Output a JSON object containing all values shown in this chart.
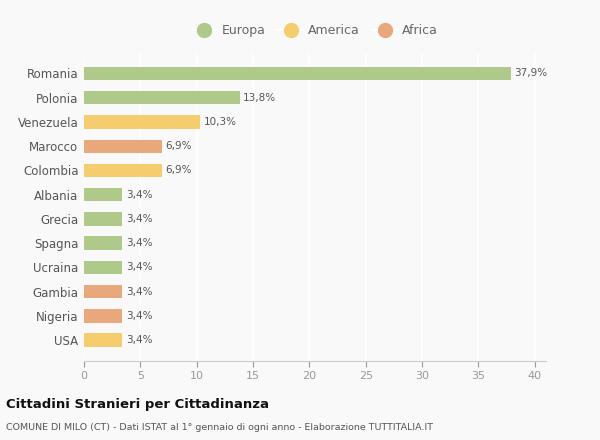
{
  "categories": [
    "Romania",
    "Polonia",
    "Venezuela",
    "Marocco",
    "Colombia",
    "Albania",
    "Grecia",
    "Spagna",
    "Ucraina",
    "Gambia",
    "Nigeria",
    "USA"
  ],
  "values": [
    37.9,
    13.8,
    10.3,
    6.9,
    6.9,
    3.4,
    3.4,
    3.4,
    3.4,
    3.4,
    3.4,
    3.4
  ],
  "labels": [
    "37,9%",
    "13,8%",
    "10,3%",
    "6,9%",
    "6,9%",
    "3,4%",
    "3,4%",
    "3,4%",
    "3,4%",
    "3,4%",
    "3,4%",
    "3,4%"
  ],
  "continent": [
    "Europa",
    "Europa",
    "America",
    "Africa",
    "America",
    "Europa",
    "Europa",
    "Europa",
    "Europa",
    "Africa",
    "Africa",
    "America"
  ],
  "colors": {
    "Europa": "#aec98a",
    "America": "#f5cd6e",
    "Africa": "#e8a87c"
  },
  "xlim": [
    0,
    41
  ],
  "xticks": [
    0,
    5,
    10,
    15,
    20,
    25,
    30,
    35,
    40
  ],
  "title": "Cittadini Stranieri per Cittadinanza",
  "subtitle": "COMUNE DI MILO (CT) - Dati ISTAT al 1° gennaio di ogni anno - Elaborazione TUTTITALIA.IT",
  "background_color": "#f9f9f9",
  "grid_color": "#ffffff",
  "bar_height": 0.55,
  "label_fontsize": 7.5,
  "ytick_fontsize": 8.5,
  "xtick_fontsize": 8
}
